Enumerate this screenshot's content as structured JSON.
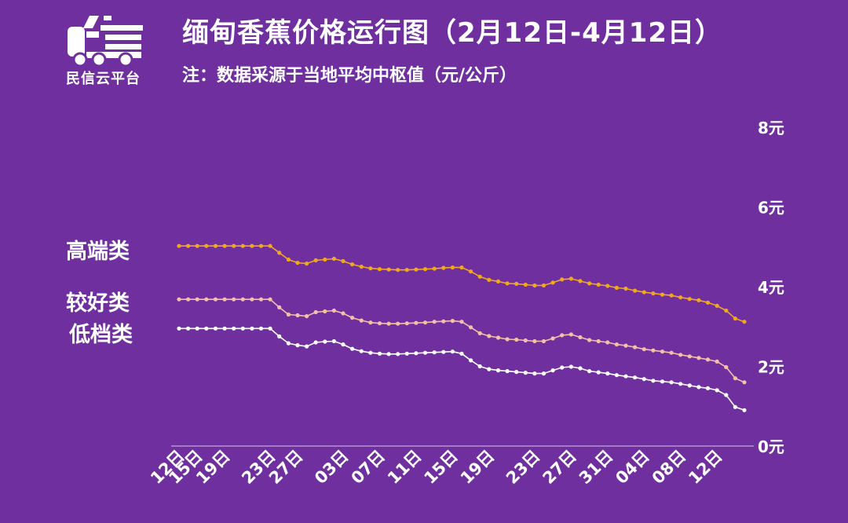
{
  "logo": {
    "text": "民信云平台",
    "icon": "truck-logo-icon"
  },
  "title": "缅甸香蕉价格运行图（2月12日-4月12日）",
  "subtitle": "注：数据采源于当地平均中枢值（元/公斤）",
  "colors": {
    "background": "#6f2f9f",
    "high": "#f0a81c",
    "mid": "#f3c1a5",
    "low": "#ffffff",
    "axis": "#d8c6ea"
  },
  "chart_data": {
    "type": "line",
    "xlabel": "",
    "ylabel": "",
    "ylim": [
      0,
      8
    ],
    "y_ticks": [
      {
        "value": 0,
        "label": "0元"
      },
      {
        "value": 2,
        "label": "2元"
      },
      {
        "value": 4,
        "label": "4元"
      },
      {
        "value": 6,
        "label": "6元"
      },
      {
        "value": 8,
        "label": "8元"
      }
    ],
    "x_tick_labels": [
      "12日",
      "15日",
      "19日",
      "23日",
      "27日",
      "03日",
      "07日",
      "11日",
      "15日",
      "19日",
      "23日",
      "27日",
      "31日",
      "04日",
      "08日",
      "12日"
    ],
    "x_tick_positions": [
      0,
      2,
      5,
      10,
      13,
      18,
      22,
      26,
      30,
      34,
      39,
      43,
      47,
      51,
      55,
      59
    ],
    "grid": false,
    "series": [
      {
        "name": "高端类",
        "color_key": "high",
        "values": [
          5.02,
          5.02,
          5.02,
          5.02,
          5.02,
          5.02,
          5.02,
          5.02,
          5.02,
          5.02,
          5.02,
          4.85,
          4.68,
          4.6,
          4.58,
          4.66,
          4.68,
          4.7,
          4.64,
          4.56,
          4.5,
          4.46,
          4.44,
          4.43,
          4.42,
          4.42,
          4.43,
          4.44,
          4.45,
          4.47,
          4.48,
          4.48,
          4.38,
          4.25,
          4.17,
          4.13,
          4.08,
          4.07,
          4.05,
          4.03,
          4.03,
          4.1,
          4.18,
          4.2,
          4.14,
          4.08,
          4.05,
          4.02,
          3.97,
          3.95,
          3.9,
          3.86,
          3.83,
          3.8,
          3.78,
          3.73,
          3.69,
          3.66,
          3.6,
          3.52,
          3.4,
          3.2,
          3.12
        ]
      },
      {
        "name": "较好类",
        "color_key": "mid",
        "values": [
          3.68,
          3.68,
          3.68,
          3.68,
          3.68,
          3.68,
          3.68,
          3.68,
          3.68,
          3.68,
          3.68,
          3.48,
          3.3,
          3.28,
          3.26,
          3.36,
          3.38,
          3.4,
          3.33,
          3.22,
          3.15,
          3.1,
          3.08,
          3.07,
          3.07,
          3.08,
          3.09,
          3.1,
          3.12,
          3.13,
          3.14,
          3.12,
          2.98,
          2.83,
          2.76,
          2.72,
          2.68,
          2.67,
          2.65,
          2.63,
          2.63,
          2.7,
          2.78,
          2.8,
          2.73,
          2.66,
          2.63,
          2.6,
          2.55,
          2.52,
          2.48,
          2.43,
          2.4,
          2.37,
          2.34,
          2.29,
          2.25,
          2.21,
          2.17,
          2.12,
          1.98,
          1.7,
          1.6
        ]
      },
      {
        "name": "低档类",
        "color_key": "low",
        "values": [
          2.95,
          2.95,
          2.95,
          2.95,
          2.95,
          2.95,
          2.95,
          2.95,
          2.95,
          2.95,
          2.95,
          2.75,
          2.58,
          2.53,
          2.5,
          2.6,
          2.62,
          2.63,
          2.55,
          2.44,
          2.38,
          2.34,
          2.32,
          2.31,
          2.31,
          2.32,
          2.33,
          2.34,
          2.35,
          2.36,
          2.37,
          2.32,
          2.15,
          2.0,
          1.93,
          1.9,
          1.88,
          1.86,
          1.84,
          1.82,
          1.82,
          1.9,
          1.97,
          1.99,
          1.95,
          1.88,
          1.85,
          1.82,
          1.78,
          1.75,
          1.72,
          1.68,
          1.64,
          1.62,
          1.6,
          1.56,
          1.52,
          1.48,
          1.45,
          1.4,
          1.28,
          0.98,
          0.9
        ]
      }
    ]
  }
}
